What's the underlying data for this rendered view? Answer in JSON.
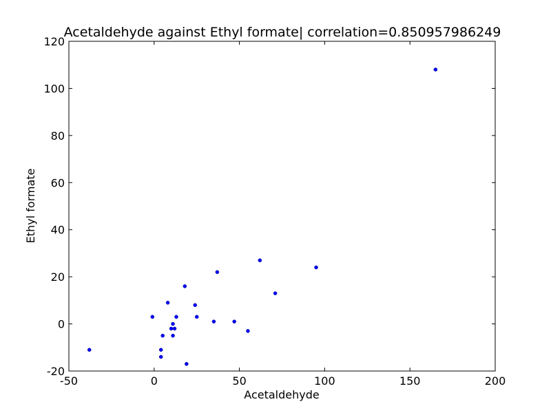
{
  "chart_data": {
    "type": "scatter",
    "title": "Acetaldehyde against Ethyl formate| correlation=0.850957986249",
    "xlabel": "Acetaldehyde",
    "ylabel": "Ethyl formate",
    "xlim": [
      -50,
      200
    ],
    "ylim": [
      -20,
      120
    ],
    "xticks": [
      -50,
      0,
      50,
      100,
      150,
      200
    ],
    "yticks": [
      -20,
      0,
      20,
      40,
      60,
      80,
      100,
      120
    ],
    "grid": false,
    "marker_color": "#0000ff",
    "points": [
      {
        "x": -38,
        "y": -11
      },
      {
        "x": -1,
        "y": 3
      },
      {
        "x": 4,
        "y": -11
      },
      {
        "x": 4,
        "y": -14
      },
      {
        "x": 5,
        "y": -5
      },
      {
        "x": 8,
        "y": 9
      },
      {
        "x": 10,
        "y": -2
      },
      {
        "x": 11,
        "y": 0
      },
      {
        "x": 11,
        "y": -5
      },
      {
        "x": 12,
        "y": -2
      },
      {
        "x": 13,
        "y": 3
      },
      {
        "x": 18,
        "y": 16
      },
      {
        "x": 19,
        "y": -17
      },
      {
        "x": 24,
        "y": 8
      },
      {
        "x": 25,
        "y": 3
      },
      {
        "x": 35,
        "y": 1
      },
      {
        "x": 37,
        "y": 22
      },
      {
        "x": 47,
        "y": 1
      },
      {
        "x": 55,
        "y": -3
      },
      {
        "x": 62,
        "y": 27
      },
      {
        "x": 71,
        "y": 13
      },
      {
        "x": 95,
        "y": 24
      },
      {
        "x": 165,
        "y": 108
      }
    ]
  }
}
